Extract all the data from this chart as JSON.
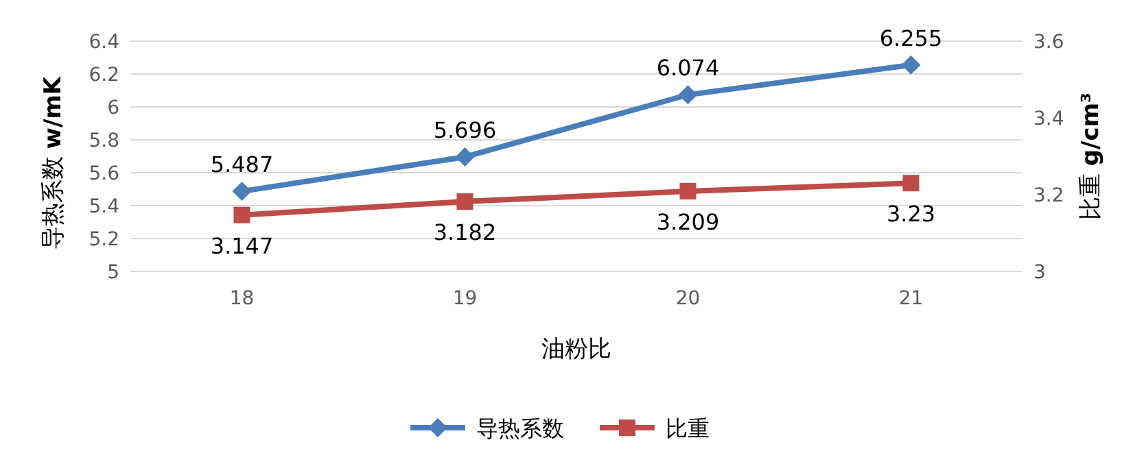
{
  "chart_data": {
    "type": "line",
    "xlabel": "油粉比",
    "ylabel": "导热系数 **w/mK**",
    "y2label": "比重 **g/cm³**",
    "categories": [
      "18",
      "19",
      "20",
      "21"
    ],
    "series": [
      {
        "name": "导热系数",
        "color": "#4a7ebb",
        "values": [
          5.487,
          5.696,
          6.074,
          6.255
        ],
        "marker": "diamond"
      },
      {
        "name": "比重",
        "color": "#be4b48",
        "values": [
          3.147,
          3.182,
          3.209,
          3.23
        ],
        "marker": "square",
        "axis": "y2"
      }
    ],
    "ylim": [
      5,
      6.4
    ],
    "yticks": [
      5,
      5.2,
      5.4,
      5.6,
      5.8,
      6,
      6.2,
      6.4
    ],
    "y2lim": [
      3,
      3.6
    ],
    "y2ticks": [
      3,
      3.2,
      3.4,
      3.6
    ],
    "grid": "y",
    "legend": "bottom",
    "data_labels": true,
    "line_style": "solid"
  }
}
